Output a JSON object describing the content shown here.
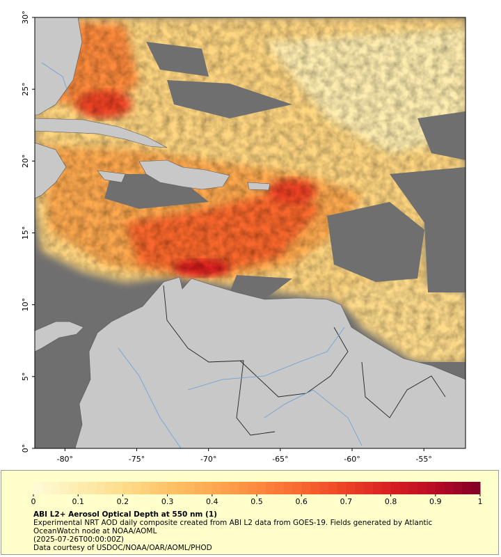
{
  "map": {
    "xlim": [
      -82.1,
      -52.1
    ],
    "ylim": [
      0,
      30
    ],
    "xticks": [
      {
        "value": -80,
        "label": "-80°"
      },
      {
        "value": -75,
        "label": "-75°"
      },
      {
        "value": -70,
        "label": "-70°"
      },
      {
        "value": -65,
        "label": "-65°"
      },
      {
        "value": -60,
        "label": "-60°"
      },
      {
        "value": -55,
        "label": "-55°"
      }
    ],
    "yticks": [
      {
        "value": 0,
        "label": "0°"
      },
      {
        "value": 5,
        "label": "5°"
      },
      {
        "value": 10,
        "label": "10°"
      },
      {
        "value": 15,
        "label": "15°"
      },
      {
        "value": 20,
        "label": "20°"
      },
      {
        "value": 25,
        "label": "25°"
      },
      {
        "value": 30,
        "label": "30°"
      }
    ]
  },
  "legend": {
    "colorbar": {
      "range": [
        0,
        1
      ],
      "ticks": [
        0,
        0.1,
        0.2,
        0.3,
        0.4,
        0.5,
        0.6,
        0.7,
        0.8,
        0.9,
        1
      ],
      "colors": [
        "#fffad8",
        "#feedb0",
        "#fedc8c",
        "#fec468",
        "#fda94f",
        "#fc8a3e",
        "#f8672f",
        "#ec4226",
        "#d81e21",
        "#b80b26",
        "#7f0028"
      ]
    },
    "title": "ABI L2+ Aerosol Optical Depth at 550 nm (1)",
    "description": "Experimental NRT AOD daily composite created from ABI L2 data from GOES-19. Fields generated by Atlantic OceanWatch node at NOAA/AOML",
    "time": "(2025-07-26T00:00:00Z)",
    "credit": "Data courtesy of USDOC/NOAA/OAR/AOML/PHOD"
  }
}
